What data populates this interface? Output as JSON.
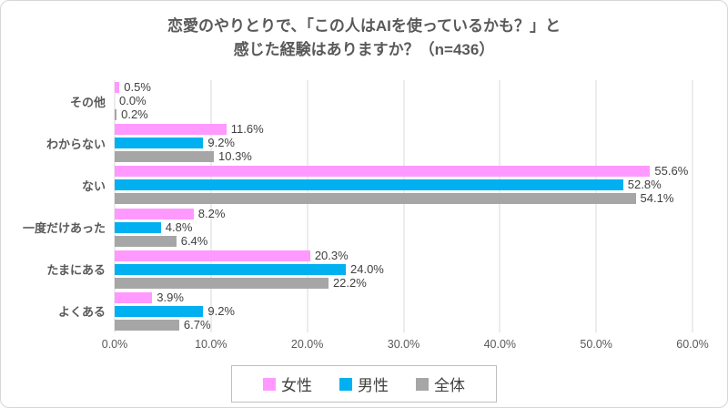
{
  "title": {
    "line1": "恋愛のやりとりで、「この人はAIを使っているかも？」と",
    "line2": "感じた経験はありますか？（n=436）"
  },
  "chart_data": {
    "type": "bar",
    "orientation": "horizontal",
    "title": "恋愛のやりとりで、「この人はAIを使っているかも？」と感じた経験はありますか？（n=436）",
    "categories": [
      "その他",
      "わからない",
      "ない",
      "一度だけあった",
      "たまにある",
      "よくある"
    ],
    "series": [
      {
        "name": "女性",
        "color": "#FF99FF",
        "values": [
          0.5,
          11.6,
          55.6,
          8.2,
          20.3,
          3.9
        ]
      },
      {
        "name": "男性",
        "color": "#00B0F0",
        "values": [
          0.0,
          9.2,
          52.8,
          4.8,
          24.0,
          9.2
        ]
      },
      {
        "name": "全体",
        "color": "#A6A6A6",
        "values": [
          0.2,
          10.3,
          54.1,
          6.4,
          22.2,
          6.7
        ]
      }
    ],
    "x_ticks": [
      "0.0%",
      "10.0%",
      "20.0%",
      "30.0%",
      "40.0%",
      "50.0%",
      "60.0%"
    ],
    "xlim": [
      0,
      60
    ],
    "grid": true,
    "legend_position": "bottom"
  },
  "colors": {
    "title_text": "#595959",
    "category_text": "#595959",
    "value_text": "#404040",
    "axis_text": "#595959",
    "gridline": "#d9d9d9",
    "frame_border": "#d7d7d7",
    "legend_border": "#bfbfbf"
  }
}
